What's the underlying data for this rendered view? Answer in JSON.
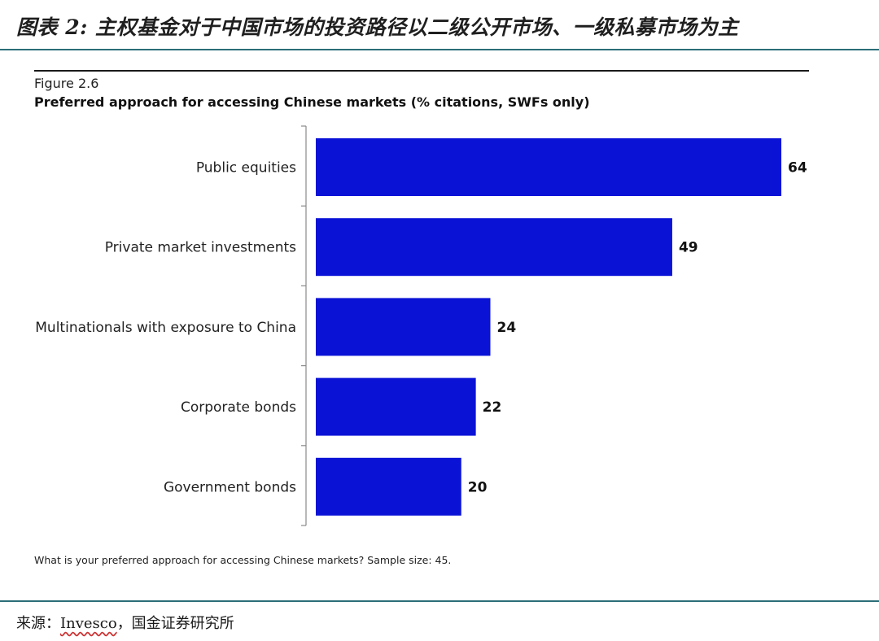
{
  "header": {
    "title": "图表 2:  主权基金对于中国市场的投资路径以二级公开市场、一级私募市场为主"
  },
  "figure": {
    "label": "Figure 2.6",
    "title": "Preferred approach for accessing Chinese markets (% citations, SWFs only)",
    "footnote": "What is your preferred approach for accessing Chinese markets? Sample size: 45."
  },
  "source": {
    "prefix": "来源：",
    "name": "Invesco",
    "suffix": "，国金证券研究所"
  },
  "chart_data": {
    "type": "bar",
    "orientation": "horizontal",
    "categories": [
      "Public equities",
      "Private market investments",
      "Multinationals with exposure to China",
      "Corporate bonds",
      "Government bonds"
    ],
    "values": [
      64,
      49,
      24,
      22,
      20
    ],
    "data_labels": [
      "64",
      "49",
      "24",
      "22",
      "20"
    ],
    "xlim": [
      0,
      64
    ],
    "bar_color": "#0a12d6",
    "grid": false
  }
}
